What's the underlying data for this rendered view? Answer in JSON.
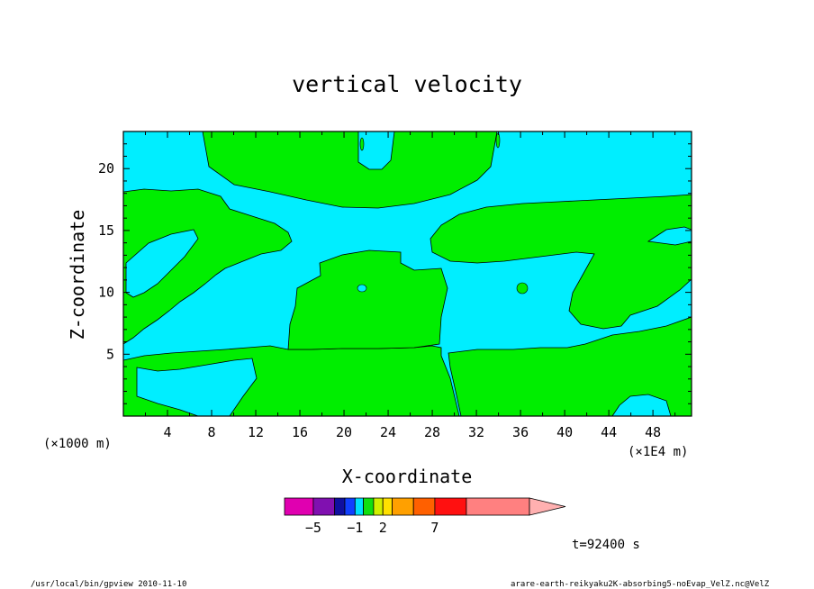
{
  "chart_data": {
    "type": "contour",
    "title": "vertical velocity",
    "xlabel": "X-coordinate",
    "ylabel": "Z-coordinate",
    "x_unit": "(×1E4 m)",
    "y_unit": "(×1000 m)",
    "xlim": [
      0,
      51.5
    ],
    "ylim": [
      0,
      23
    ],
    "x_ticks": [
      4,
      8,
      12,
      16,
      20,
      24,
      28,
      32,
      36,
      40,
      44,
      48
    ],
    "x_tick_labels": [
      "4",
      "8",
      "12",
      "16",
      "20",
      "24",
      "28",
      "32",
      "36",
      "40",
      "44",
      "48"
    ],
    "y_ticks": [
      5,
      10,
      15,
      20
    ],
    "y_tick_labels": [
      "5",
      "10",
      "15",
      "20"
    ],
    "time_label": "t=92400 s",
    "colorbar": {
      "levels": [
        -7,
        -5,
        -3,
        -2,
        -1,
        0,
        1,
        2,
        3,
        5,
        7,
        10,
        15
      ],
      "labels": [
        {
          "value": -5,
          "text": "−5"
        },
        {
          "value": -1,
          "text": "−1"
        },
        {
          "value": 2,
          "text": "2"
        },
        {
          "value": 7,
          "text": "7"
        }
      ],
      "colors": [
        "#e000b0",
        "#8010b0",
        "#1010a0",
        "#1040ff",
        "#00e0ff",
        "#10e010",
        "#d0f000",
        "#ffe000",
        "#ffa000",
        "#ff6000",
        "#ff1010",
        "#ff8080",
        "#ffb0b0"
      ]
    },
    "field_colors": {
      "negative_small": "#00eeff",
      "positive_small": "#00ee00"
    }
  },
  "footer": {
    "left": "/usr/local/bin/gpview  2010-11-10",
    "right": "arare-earth-reikyaku2K-absorbing5-noEvap_VelZ.nc@VelZ"
  }
}
